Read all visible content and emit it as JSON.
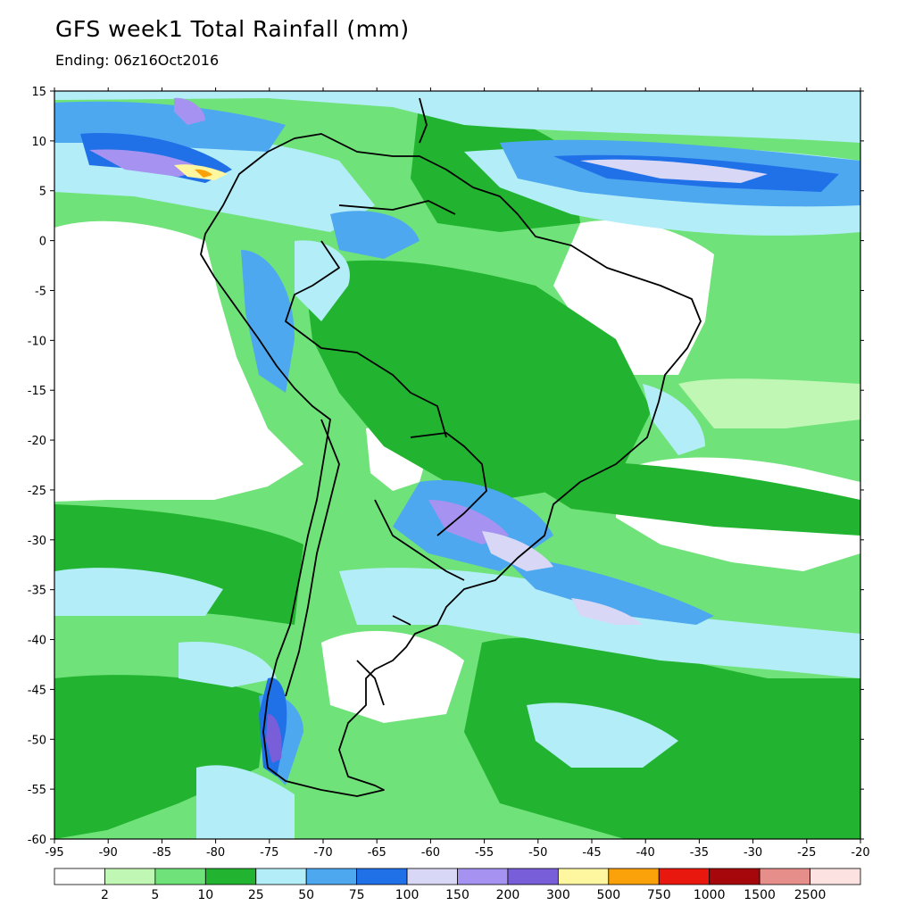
{
  "header": {
    "title": "GFS week1 Total Rainfall (mm)",
    "subtitle": "Ending: 06z16Oct2016"
  },
  "map": {
    "lon_range": [
      -95,
      -20
    ],
    "lat_range": [
      -60,
      15
    ],
    "lon_ticks": [
      -95,
      -90,
      -85,
      -80,
      -75,
      -70,
      -65,
      -60,
      -55,
      -50,
      -45,
      -40,
      -35,
      -30,
      -25,
      -20
    ],
    "lat_ticks": [
      15,
      10,
      5,
      0,
      -5,
      -10,
      -15,
      -20,
      -25,
      -30,
      -35,
      -40,
      -45,
      -50,
      -55,
      -60
    ]
  },
  "legend": {
    "colors": [
      "#ffffff",
      "#c0f7b5",
      "#70e27a",
      "#22b430",
      "#b3eef8",
      "#4da8ef",
      "#2070e8",
      "#d8d8f6",
      "#a693f1",
      "#785ed8",
      "#fef7a0",
      "#fba10a",
      "#e8180f",
      "#a5070b",
      "#e68e89",
      "#fde2e2"
    ],
    "labels": [
      "2",
      "5",
      "10",
      "25",
      "50",
      "75",
      "100",
      "150",
      "200",
      "300",
      "500",
      "750",
      "1000",
      "1500",
      "2500"
    ]
  }
}
